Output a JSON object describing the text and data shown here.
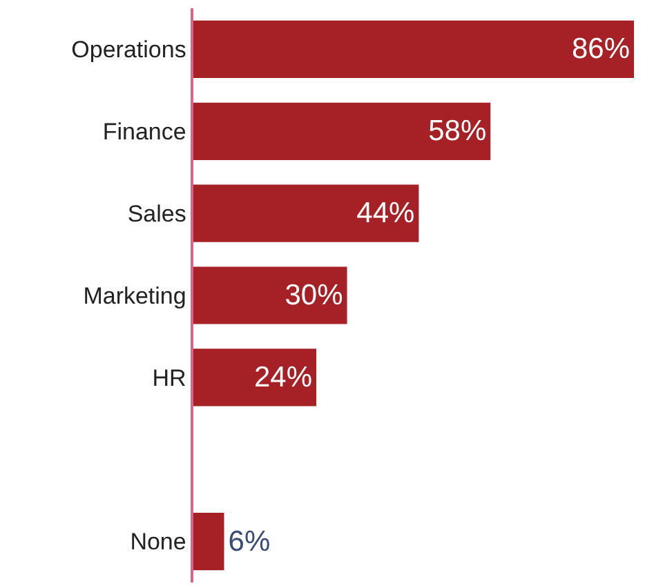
{
  "chart_data": {
    "type": "bar",
    "orientation": "horizontal",
    "categories": [
      "Operations",
      "Finance",
      "Sales",
      "Marketing",
      "HR",
      null,
      "None"
    ],
    "values": [
      86,
      58,
      44,
      30,
      24,
      null,
      6
    ],
    "value_labels": [
      "86%",
      "58%",
      "44%",
      "30%",
      "24%",
      null,
      "6%"
    ],
    "color": "#a52125",
    "tick_labels": "y"
  }
}
